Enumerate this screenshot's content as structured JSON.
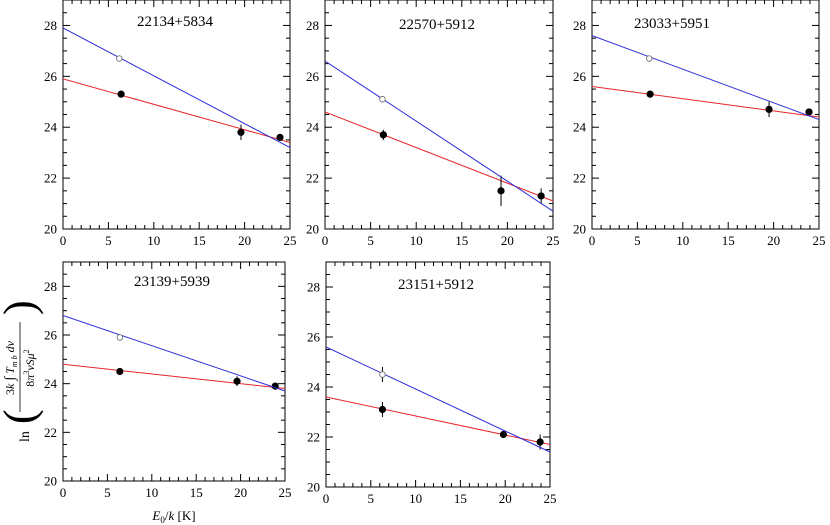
{
  "chart_data": [
    {
      "type": "scatter",
      "title": "22134+5834",
      "xlim": [
        0,
        25
      ],
      "ylim": [
        20,
        29
      ],
      "xticks": [
        0,
        5,
        10,
        15,
        20,
        25
      ],
      "yticks": [
        20,
        22,
        24,
        26,
        28
      ],
      "series": [
        {
          "color": "#e8262b",
          "marker": "filled",
          "points": [
            {
              "x": 6.4,
              "y": 25.3,
              "err": 0.1
            },
            {
              "x": 19.6,
              "y": 23.8,
              "err": 0.3
            },
            {
              "x": 23.9,
              "y": 23.6,
              "err": 0.1
            }
          ],
          "fit": {
            "x": [
              0,
              25
            ],
            "y": [
              25.9,
              23.4
            ]
          }
        },
        {
          "color": "#2b2bd9",
          "marker": "open",
          "points": [
            {
              "x": 6.2,
              "y": 26.7,
              "err": 0.1
            }
          ],
          "fit": {
            "x": [
              0,
              25
            ],
            "y": [
              27.9,
              23.2
            ]
          }
        }
      ]
    },
    {
      "type": "scatter",
      "title": "22570+5912",
      "xlim": [
        0,
        25
      ],
      "ylim": [
        20,
        29
      ],
      "xticks": [
        0,
        5,
        10,
        15,
        20,
        25
      ],
      "yticks": [
        20,
        22,
        24,
        26,
        28
      ],
      "series": [
        {
          "color": "#e8262b",
          "marker": "filled",
          "points": [
            {
              "x": 6.4,
              "y": 23.7,
              "err": 0.2
            },
            {
              "x": 19.3,
              "y": 21.5,
              "err": 0.6
            },
            {
              "x": 23.7,
              "y": 21.3,
              "err": 0.3
            }
          ],
          "fit": {
            "x": [
              0,
              25
            ],
            "y": [
              24.6,
              21.1
            ]
          }
        },
        {
          "color": "#2b2bd9",
          "marker": "open",
          "points": [
            {
              "x": 6.3,
              "y": 25.1,
              "err": 0.1
            }
          ],
          "fit": {
            "x": [
              0,
              25
            ],
            "y": [
              26.6,
              20.7
            ]
          }
        }
      ]
    },
    {
      "type": "scatter",
      "title": "23033+5951",
      "xlim": [
        0,
        25
      ],
      "ylim": [
        20,
        29
      ],
      "xticks": [
        0,
        5,
        10,
        15,
        20,
        25
      ],
      "yticks": [
        20,
        22,
        24,
        26,
        28
      ],
      "series": [
        {
          "color": "#e8262b",
          "marker": "filled",
          "points": [
            {
              "x": 6.4,
              "y": 25.3,
              "err": 0.1
            },
            {
              "x": 19.5,
              "y": 24.7,
              "err": 0.3
            },
            {
              "x": 23.9,
              "y": 24.6,
              "err": 0.1
            }
          ],
          "fit": {
            "x": [
              0,
              25
            ],
            "y": [
              25.6,
              24.4
            ]
          }
        },
        {
          "color": "#2b2bd9",
          "marker": "open",
          "points": [
            {
              "x": 6.3,
              "y": 26.7,
              "err": 0.1
            }
          ],
          "fit": {
            "x": [
              0,
              25
            ],
            "y": [
              27.6,
              24.3
            ]
          }
        }
      ]
    },
    {
      "type": "scatter",
      "title": "23139+5939",
      "xlim": [
        0,
        25
      ],
      "ylim": [
        20,
        29
      ],
      "xticks": [
        0,
        5,
        10,
        15,
        20,
        25
      ],
      "yticks": [
        20,
        22,
        24,
        26,
        28
      ],
      "xlabel": "E0/k [K]",
      "ylabel": "ln(3k ∫ Tmb dv / 8π³ ν S μ²)",
      "series": [
        {
          "color": "#e8262b",
          "marker": "filled",
          "points": [
            {
              "x": 6.4,
              "y": 24.5,
              "err": 0.1
            },
            {
              "x": 19.6,
              "y": 24.1,
              "err": 0.2
            },
            {
              "x": 23.9,
              "y": 23.9,
              "err": 0.1
            }
          ],
          "fit": {
            "x": [
              0,
              25
            ],
            "y": [
              24.8,
              23.8
            ]
          }
        },
        {
          "color": "#2b2bd9",
          "marker": "open",
          "points": [
            {
              "x": 6.4,
              "y": 25.9,
              "err": 0.1
            }
          ],
          "fit": {
            "x": [
              0,
              25
            ],
            "y": [
              26.8,
              23.7
            ]
          }
        }
      ]
    },
    {
      "type": "scatter",
      "title": "23151+5912",
      "xlim": [
        0,
        25
      ],
      "ylim": [
        20,
        29
      ],
      "xticks": [
        0,
        5,
        10,
        15,
        20,
        25
      ],
      "yticks": [
        20,
        22,
        24,
        26,
        28
      ],
      "series": [
        {
          "color": "#e8262b",
          "marker": "filled",
          "points": [
            {
              "x": 6.3,
              "y": 23.1,
              "err": 0.3
            },
            {
              "x": 19.8,
              "y": 22.1,
              "err": 0.1
            },
            {
              "x": 23.9,
              "y": 21.8,
              "err": 0.3
            }
          ],
          "fit": {
            "x": [
              0,
              25
            ],
            "y": [
              23.6,
              21.7
            ]
          }
        },
        {
          "color": "#2b2bd9",
          "marker": "open",
          "points": [
            {
              "x": 6.3,
              "y": 24.5,
              "err": 0.3
            }
          ],
          "fit": {
            "x": [
              0,
              25
            ],
            "y": [
              25.6,
              21.4
            ]
          }
        }
      ]
    }
  ]
}
